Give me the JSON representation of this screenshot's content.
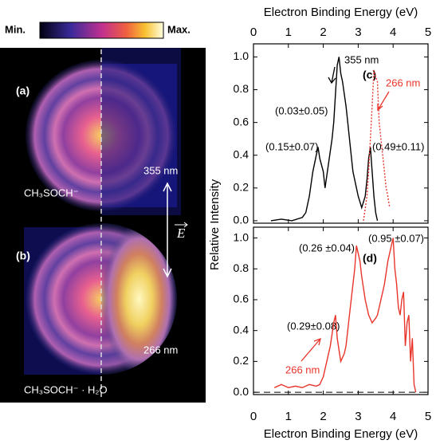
{
  "figure": {
    "colorbar_min": "Min.",
    "colorbar_max": "Max.",
    "panel_a": "(a)",
    "panel_b": "(b)",
    "wavelength_a": "355 nm",
    "wavelength_b": "266 nm",
    "species_a": "CH₃SOCH⁻",
    "species_b": "CH₃SOCH⁻ · H₂O",
    "field": "E"
  },
  "chart_data": [
    {
      "type": "line",
      "label": "(c)",
      "xlabel": "Electron Binding Energy (eV)",
      "ylabel": "Relative Intensity",
      "xlim": [
        0,
        5
      ],
      "xticks": [
        0,
        1,
        2,
        3,
        4,
        5
      ],
      "ylim": [
        -0.015,
        1.08
      ],
      "yticks": [
        {
          "value": 0,
          "label": "0.0"
        },
        0.2,
        0.4,
        0.6,
        0.8,
        {
          "value": 1,
          "label": "1.0"
        }
      ],
      "annotations": [
        "(0.03±0.05)",
        "(0.15±0.07)",
        "(0.49±0.11)"
      ],
      "series": [
        {
          "name": "355 nm",
          "color": "#000000",
          "dash": false,
          "x": [
            0.5,
            0.8,
            1.1,
            1.4,
            1.5,
            1.6,
            1.7,
            1.8,
            1.85,
            1.9,
            2.0,
            2.05,
            2.15,
            2.25,
            2.3,
            2.4,
            2.45,
            2.5,
            2.55,
            2.65,
            2.7,
            2.8,
            2.85,
            2.95,
            3.0,
            3.1,
            3.2,
            3.25,
            3.3,
            3.35,
            3.4,
            3.45,
            3.5,
            3.55
          ],
          "values": [
            0,
            0.01,
            0,
            0.02,
            0.05,
            0.15,
            0.3,
            0.4,
            0.45,
            0.38,
            0.3,
            0.2,
            0.35,
            0.5,
            0.6,
            0.95,
            1.0,
            0.9,
            0.85,
            0.7,
            0.6,
            0.4,
            0.3,
            0.2,
            0.15,
            0.08,
            0.15,
            0.25,
            0.38,
            0.45,
            0.3,
            0.15,
            0.05,
            0
          ]
        },
        {
          "name": "266 nm",
          "color": "#e8342a",
          "dash": true,
          "x": [
            3.15,
            3.25,
            3.3,
            3.35,
            3.4,
            3.45,
            3.5,
            3.55,
            3.6,
            3.65,
            3.7,
            3.75,
            3.8,
            3.85,
            3.9
          ],
          "values": [
            0,
            0.15,
            0.3,
            0.5,
            0.7,
            0.92,
            0.88,
            0.85,
            0.6,
            0.5,
            0.4,
            0.3,
            0.2,
            0.15,
            0.08
          ]
        }
      ]
    },
    {
      "type": "line",
      "label": "(d)",
      "xlabel": "Electron Binding Energy (eV)",
      "xlim": [
        0,
        5
      ],
      "xticks": [
        0,
        1,
        2,
        3,
        4,
        5
      ],
      "ylim": [
        -0.015,
        1.07
      ],
      "yticks": [
        {
          "value": 0,
          "label": "0.0"
        },
        0.2,
        0.4,
        0.6,
        0.8,
        {
          "value": 1,
          "label": "1.0"
        }
      ],
      "baseline": 0,
      "annotations": [
        "(0.26 ±0.04)",
        "(0.95 ±0.07)",
        "(0.29±0.08)"
      ],
      "series": [
        {
          "name": "266 nm",
          "color": "#e8342a",
          "dash": false,
          "x": [
            0.6,
            0.8,
            1.0,
            1.2,
            1.4,
            1.6,
            1.8,
            1.9,
            2.0,
            2.1,
            2.2,
            2.3,
            2.35,
            2.4,
            2.5,
            2.6,
            2.65,
            2.75,
            2.8,
            2.9,
            2.95,
            3.05,
            3.1,
            3.2,
            3.3,
            3.4,
            3.5,
            3.55,
            3.65,
            3.75,
            3.85,
            3.9,
            4.0,
            4.05,
            4.1,
            4.15,
            4.2,
            4.25,
            4.3,
            4.35,
            4.4,
            4.45,
            4.5,
            4.55,
            4.6,
            4.65
          ],
          "values": [
            0.03,
            0.05,
            0.03,
            0.04,
            0.03,
            0.05,
            0.04,
            0.05,
            0.1,
            0.2,
            0.3,
            0.45,
            0.5,
            0.35,
            0.2,
            0.25,
            0.3,
            0.5,
            0.6,
            0.8,
            0.95,
            0.85,
            0.75,
            0.6,
            0.5,
            0.45,
            0.48,
            0.5,
            0.6,
            0.7,
            0.85,
            0.9,
            1.0,
            0.8,
            0.7,
            0.55,
            0.5,
            0.6,
            0.65,
            0.3,
            0.45,
            0.5,
            0.2,
            0.35,
            0.05,
            0
          ]
        }
      ]
    }
  ]
}
